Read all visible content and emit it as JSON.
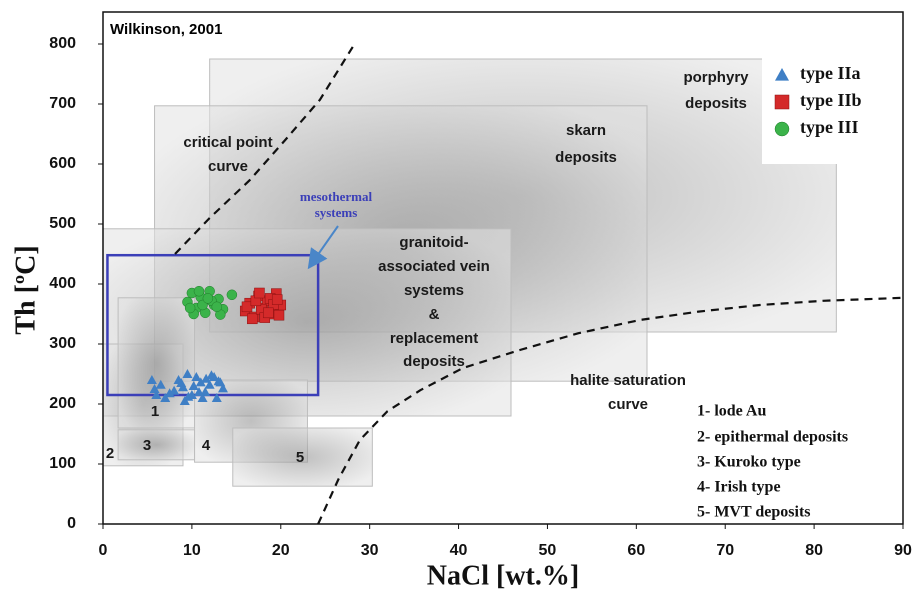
{
  "chart_data": {
    "type": "scatter",
    "annotation": "Wilkinson, 2001",
    "xlabel": "NaCl  [wt.%]",
    "ylabel": "Th [ºC]",
    "xlim": [
      0,
      90
    ],
    "xticks": [
      0,
      10,
      20,
      30,
      40,
      50,
      60,
      70,
      80,
      90
    ],
    "ylim": [
      0,
      800
    ],
    "yticks": [
      0,
      100,
      200,
      300,
      400,
      500,
      600,
      700,
      800
    ],
    "legend_position": "upper right",
    "regions": [
      {
        "label": [
          "porphyry",
          "deposits"
        ],
        "x": [
          12,
          82.5
        ],
        "y": [
          320,
          775
        ]
      },
      {
        "label": [
          "skarn",
          "deposits"
        ],
        "x": [
          5.8,
          61.2
        ],
        "y": [
          238,
          697
        ]
      },
      {
        "label": [
          "granitoid-",
          "associated vein",
          "systems",
          "&",
          "replacement",
          "deposits"
        ],
        "x": [
          0,
          45.9
        ],
        "y": [
          180,
          492
        ]
      },
      {
        "label": [
          "2"
        ],
        "x": [
          0,
          9
        ],
        "y": [
          97,
          300
        ]
      },
      {
        "label": [
          "1"
        ],
        "x": [
          1.7,
          10.3
        ],
        "y": [
          160,
          377
        ]
      },
      {
        "label": [
          "3"
        ],
        "x": [
          1.7,
          10.3
        ],
        "y": [
          107,
          157
        ]
      },
      {
        "label": [
          "4"
        ],
        "x": [
          10.3,
          23
        ],
        "y": [
          103,
          240
        ]
      },
      {
        "label": [
          "5"
        ],
        "x": [
          14.6,
          30.3
        ],
        "y": [
          63,
          160
        ]
      }
    ],
    "box": {
      "label": [
        "mesothermal",
        "systems"
      ],
      "x": [
        0.5,
        24.2
      ],
      "y": [
        215,
        448
      ],
      "color": "#3b3fb8"
    },
    "curves": [
      {
        "label": [
          "critical point",
          "curve"
        ],
        "x": [
          8.1,
          12,
          16.5,
          20.5,
          24.4,
          28.3
        ],
        "y": [
          450,
          510,
          573,
          640,
          707,
          800
        ]
      },
      {
        "label": [
          "halite saturation",
          "curve"
        ],
        "x": [
          24.2,
          26.5,
          28.9,
          32,
          35.7,
          40.5,
          46.9,
          53.5,
          60.4,
          67,
          73.9,
          81,
          90
        ],
        "y": [
          0,
          75,
          140,
          188,
          223,
          260,
          290,
          318,
          340,
          354,
          365,
          372,
          377
        ]
      }
    ],
    "key": [
      "1- lode Au",
      "2- epithermal deposits",
      "3- Kuroko type",
      "4- Irish type",
      "5- MVT deposits"
    ],
    "series": [
      {
        "name": "type  IIa",
        "color": "#3f7fc5",
        "marker": "triangle",
        "x": [
          5.5,
          6,
          5.8,
          6.5,
          7,
          8,
          8.5,
          9,
          9.5,
          10,
          10.5,
          11,
          11.5,
          12,
          12.5,
          13,
          13.5,
          9.2,
          10.2,
          11.2,
          12.2,
          8.8,
          10.8,
          12.8,
          11.6,
          9.6,
          13.2,
          7.5
        ],
        "values": [
          240,
          215,
          225,
          232,
          210,
          222,
          240,
          228,
          250,
          215,
          245,
          236,
          220,
          232,
          245,
          238,
          226,
          205,
          230,
          210,
          248,
          235,
          220,
          210,
          242,
          212,
          236,
          218
        ]
      },
      {
        "name": "type  IIb",
        "color": "#d42a2a",
        "marker": "square",
        "x": [
          16,
          16.5,
          17,
          17.5,
          18,
          18.5,
          19,
          19.5,
          20,
          16.8,
          17.8,
          18.8,
          19.8,
          16.2,
          17.2,
          18.2,
          19.2,
          17.6,
          18.6,
          19.6
        ],
        "values": [
          355,
          368,
          345,
          380,
          360,
          372,
          350,
          384,
          365,
          342,
          358,
          376,
          348,
          362,
          372,
          344,
          366,
          385,
          352,
          374
        ]
      },
      {
        "name": "type  III",
        "color": "#3bb34a",
        "marker": "circle",
        "x": [
          9.5,
          10,
          10.5,
          11,
          11.5,
          12,
          12.5,
          13,
          13.5,
          14.5,
          10.2,
          11.2,
          12.2,
          13.2,
          10.8,
          11.8,
          12.8,
          9.8
        ],
        "values": [
          370,
          385,
          360,
          378,
          352,
          388,
          365,
          375,
          358,
          382,
          350,
          365,
          372,
          349,
          388,
          376,
          362,
          360
        ]
      }
    ]
  }
}
